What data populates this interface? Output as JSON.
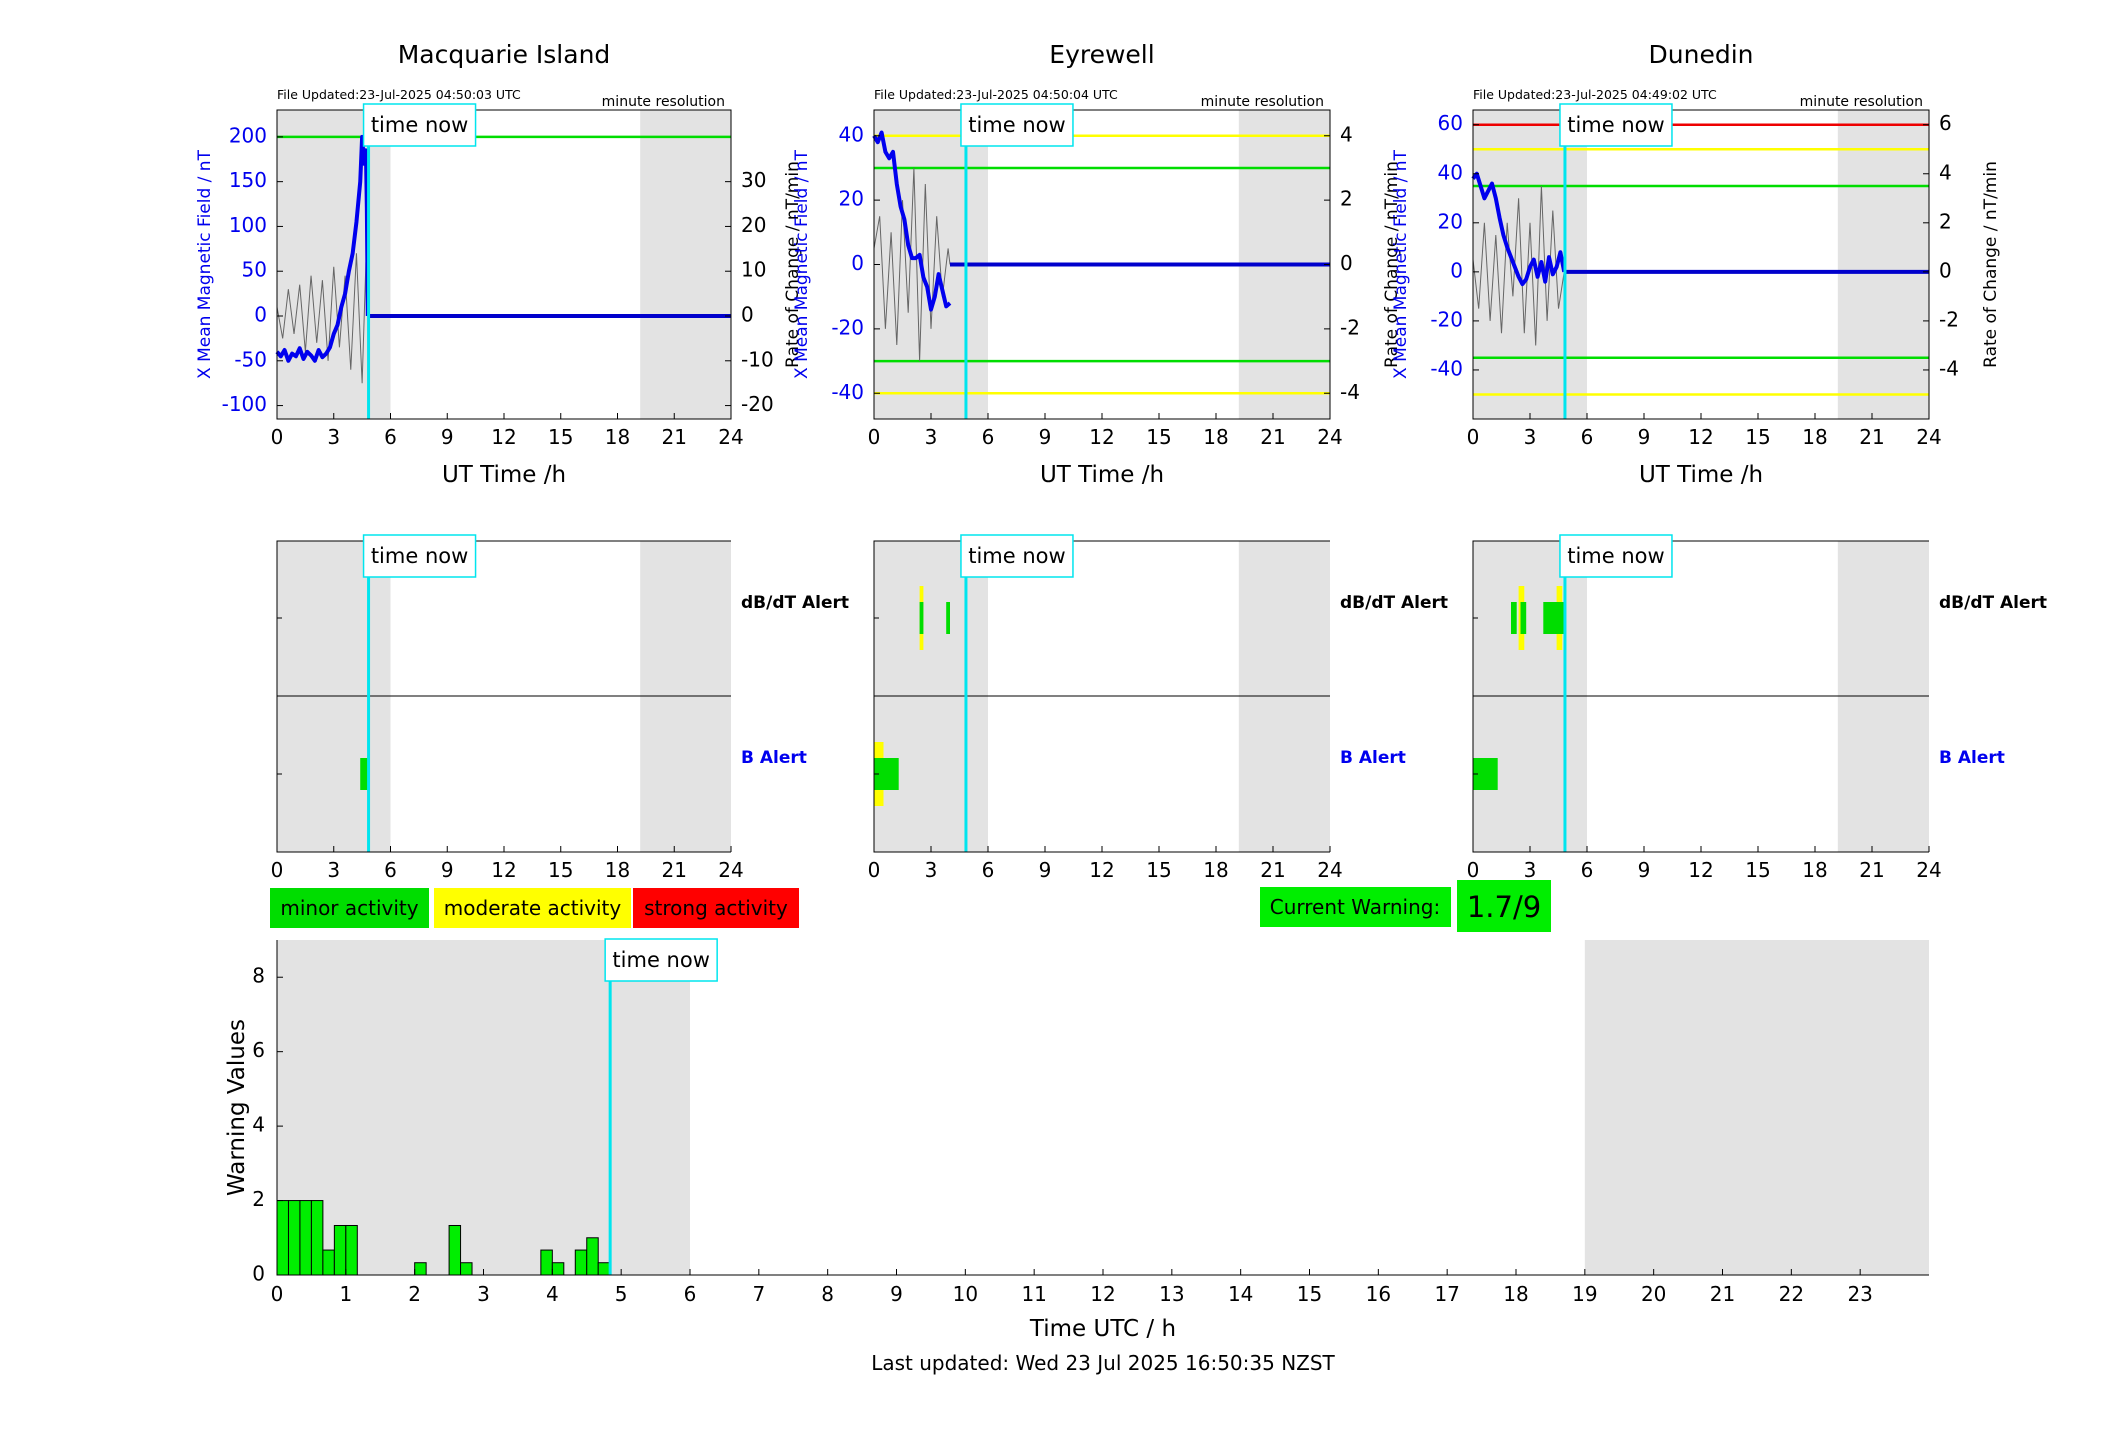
{
  "stations": [
    {
      "name": "Macquarie Island",
      "file_updated": "File Updated:23-Jul-2025 04:50:03 UTC",
      "resolution": "minute resolution",
      "ylabel_left": "X Mean Magnetic Field / nT",
      "ylabel_right": "Rate of Change / nT/min",
      "xlabel": "UT Time /h",
      "ylim_left": [
        -115,
        230
      ],
      "ylim_right": [
        -23,
        46
      ],
      "yticks_left": [
        "-100",
        "-50",
        "0",
        "50",
        "100",
        "150",
        "200"
      ],
      "yticks_left_values": [
        -100,
        -50,
        0,
        50,
        100,
        150,
        200
      ],
      "yticks_right": [
        "-20",
        "-10",
        "0",
        "10",
        "20",
        "30"
      ],
      "yticks_right_values": [
        -20,
        -10,
        0,
        10,
        20,
        30
      ],
      "threshold_lines": [
        {
          "value": 200,
          "color": "#00dd00"
        }
      ],
      "field_x": [
        0,
        0.2,
        0.4,
        0.6,
        0.8,
        1.0,
        1.2,
        1.4,
        1.6,
        1.8,
        2.0,
        2.2,
        2.4,
        2.6,
        2.8,
        3.0,
        3.2,
        3.4,
        3.6,
        3.8,
        4.0,
        4.2,
        4.4,
        4.5,
        4.6,
        4.7,
        4.75,
        4.8
      ],
      "field_y": [
        -40,
        -45,
        -38,
        -50,
        -42,
        -45,
        -36,
        -48,
        -40,
        -44,
        -50,
        -38,
        -46,
        -42,
        -35,
        -20,
        -10,
        10,
        25,
        50,
        70,
        105,
        150,
        200,
        170,
        185,
        120,
        0
      ],
      "roc_x": [
        0,
        0.3,
        0.6,
        0.9,
        1.2,
        1.5,
        1.8,
        2.1,
        2.4,
        2.7,
        3.0,
        3.3,
        3.6,
        3.9,
        4.2,
        4.5,
        4.7,
        4.8
      ],
      "roc_y": [
        2,
        -5,
        6,
        -4,
        7,
        -8,
        9,
        -6,
        8,
        -10,
        11,
        -7,
        9,
        -12,
        14,
        -15,
        12,
        0
      ],
      "now_label": "time now",
      "alerts": {
        "dbdt": [],
        "b": [
          [
            4.4,
            4.8,
            "#00dd00"
          ]
        ]
      }
    },
    {
      "name": "Eyrewell",
      "file_updated": "File Updated:23-Jul-2025 04:50:04 UTC",
      "resolution": "minute resolution",
      "ylabel_left": "X Mean Magnetic Field / nT",
      "ylabel_right": "Rate of Change / nT/min",
      "xlabel": "UT Time /h",
      "ylim_left": [
        -48,
        48
      ],
      "ylim_right": [
        -4.8,
        4.8
      ],
      "yticks_left": [
        "-40",
        "-20",
        "0",
        "20",
        "40"
      ],
      "yticks_left_values": [
        -40,
        -20,
        0,
        20,
        40
      ],
      "yticks_right": [
        "-4",
        "-2",
        "0",
        "2",
        "4"
      ],
      "yticks_right_values": [
        -4,
        -2,
        0,
        2,
        4
      ],
      "threshold_lines": [
        {
          "value": 40,
          "color": "#ffff00"
        },
        {
          "value": 30,
          "color": "#00dd00"
        },
        {
          "value": -30,
          "color": "#00dd00"
        },
        {
          "value": -40,
          "color": "#ffff00"
        }
      ],
      "field_x": [
        0,
        0.2,
        0.4,
        0.6,
        0.8,
        1.0,
        1.2,
        1.4,
        1.6,
        1.8,
        2.0,
        2.2,
        2.4,
        2.6,
        2.8,
        3.0,
        3.2,
        3.4,
        3.6,
        3.8,
        4.0
      ],
      "field_y": [
        40,
        38,
        41,
        35,
        33,
        35,
        25,
        18,
        14,
        6,
        2,
        2,
        3,
        -4,
        -7,
        -14,
        -10,
        -3,
        -8,
        -13,
        -12
      ],
      "roc_x": [
        0,
        0.3,
        0.6,
        0.9,
        1.2,
        1.5,
        1.8,
        2.1,
        2.4,
        2.7,
        3.0,
        3.3,
        3.6,
        3.9,
        4.0
      ],
      "roc_y": [
        0.5,
        1.5,
        -2,
        1,
        -2.5,
        2,
        -1.5,
        3,
        -3,
        2.5,
        -2,
        1.5,
        -1,
        0.5,
        0
      ],
      "now_label": "time now",
      "alerts": {
        "dbdt": [
          [
            2.4,
            2.6,
            "#ffff00"
          ],
          [
            2.4,
            2.6,
            "#00dd00"
          ],
          [
            3.8,
            4.0,
            "#00dd00"
          ]
        ],
        "b": [
          [
            0,
            0.5,
            "#ffff00"
          ],
          [
            0.5,
            1.3,
            "#00dd00"
          ],
          [
            0,
            0.5,
            "#00dd00"
          ]
        ]
      }
    },
    {
      "name": "Dunedin",
      "file_updated": "File Updated:23-Jul-2025 04:49:02 UTC",
      "resolution": "minute resolution",
      "ylabel_left": "X Mean Magnetic Field / nT",
      "ylabel_right": "Rate of Change / nT/min",
      "xlabel": "UT Time /h",
      "ylim_left": [
        -60,
        66
      ],
      "ylim_right": [
        -6,
        6.6
      ],
      "yticks_left": [
        "-40",
        "-20",
        "0",
        "20",
        "40",
        "60"
      ],
      "yticks_left_values": [
        -40,
        -20,
        0,
        20,
        40,
        60
      ],
      "yticks_right": [
        "-4",
        "-2",
        "0",
        "2",
        "4",
        "6"
      ],
      "yticks_right_values": [
        -4,
        -2,
        0,
        2,
        4,
        6
      ],
      "threshold_lines": [
        {
          "value": 60,
          "color": "#ee0000"
        },
        {
          "value": 50,
          "color": "#ffff00"
        },
        {
          "value": 35,
          "color": "#00dd00"
        },
        {
          "value": -35,
          "color": "#00dd00"
        },
        {
          "value": -50,
          "color": "#ffff00"
        }
      ],
      "field_x": [
        0,
        0.2,
        0.4,
        0.6,
        0.8,
        1.0,
        1.2,
        1.4,
        1.6,
        1.8,
        2.0,
        2.2,
        2.4,
        2.6,
        2.8,
        3.0,
        3.2,
        3.4,
        3.6,
        3.8,
        4.0,
        4.2,
        4.4,
        4.6,
        4.8
      ],
      "field_y": [
        38,
        40,
        35,
        30,
        33,
        36,
        30,
        22,
        15,
        10,
        6,
        2,
        -2,
        -5,
        -3,
        2,
        5,
        -2,
        4,
        -4,
        6,
        -1,
        2,
        8,
        0
      ],
      "roc_x": [
        0,
        0.3,
        0.6,
        0.9,
        1.2,
        1.5,
        1.8,
        2.1,
        2.4,
        2.7,
        3.0,
        3.3,
        3.6,
        3.9,
        4.2,
        4.5,
        4.8
      ],
      "roc_y": [
        0.5,
        -1.5,
        2,
        -2,
        1.5,
        -2.5,
        2,
        -1,
        3,
        -2.5,
        2,
        -3,
        3.5,
        -2,
        2.5,
        -1.5,
        0
      ],
      "now_label": "time now",
      "alerts": {
        "dbdt": [
          [
            2.4,
            2.7,
            "#ffff00"
          ],
          [
            4.4,
            4.7,
            "#ffff00"
          ],
          [
            2.0,
            2.3,
            "#00dd00"
          ],
          [
            2.5,
            2.8,
            "#00dd00"
          ],
          [
            3.7,
            4.9,
            "#00dd00"
          ]
        ],
        "b": [
          [
            0,
            1.3,
            "#00dd00"
          ]
        ]
      }
    }
  ],
  "alert_labels": {
    "dbdt": "dB/dT Alert",
    "b": "B Alert"
  },
  "alert_label_colors": {
    "dbdt": "#000000",
    "b": "#0000ee"
  },
  "top_xticks": [
    "0",
    "3",
    "6",
    "9",
    "12",
    "15",
    "18",
    "21",
    "24"
  ],
  "top_xtick_values": [
    0,
    3,
    6,
    9,
    12,
    15,
    18,
    21,
    24
  ],
  "night_bands": [
    [
      0,
      6
    ],
    [
      19.2,
      24
    ]
  ],
  "now_hour": 4.84,
  "legend": [
    {
      "label": "minor activity",
      "color": "#00dd00"
    },
    {
      "label": "moderate activity",
      "color": "#ffff00"
    },
    {
      "label": "strong activity",
      "color": "#ff0000"
    }
  ],
  "current_warning": {
    "label": "Current Warning:",
    "value": "1.7/9",
    "color": "#00ee00"
  },
  "chart_data": {
    "type": "bar",
    "title": "",
    "xlabel": "Time UTC / h",
    "ylabel": "Warning Values",
    "xlim": [
      0,
      24
    ],
    "ylim": [
      0,
      9
    ],
    "xticks": [
      "0",
      "1",
      "2",
      "3",
      "4",
      "5",
      "6",
      "7",
      "8",
      "9",
      "10",
      "11",
      "12",
      "13",
      "14",
      "15",
      "16",
      "17",
      "18",
      "19",
      "20",
      "21",
      "22",
      "23"
    ],
    "yticks": [
      "0",
      "2",
      "4",
      "6",
      "8"
    ],
    "bar_width_h": 0.1667,
    "bar_color": "#00ee00",
    "night_bands": [
      [
        0,
        6
      ],
      [
        19,
        24
      ]
    ],
    "now_hour": 4.84,
    "now_label": "time now",
    "bars": [
      {
        "x": 0.0,
        "value": 2.0
      },
      {
        "x": 0.1667,
        "value": 2.0
      },
      {
        "x": 0.3333,
        "value": 2.0
      },
      {
        "x": 0.5,
        "value": 2.0
      },
      {
        "x": 0.6667,
        "value": 0.67
      },
      {
        "x": 0.8333,
        "value": 1.33
      },
      {
        "x": 1.0,
        "value": 1.33
      },
      {
        "x": 2.0,
        "value": 0.33
      },
      {
        "x": 2.5,
        "value": 1.33
      },
      {
        "x": 2.6667,
        "value": 0.33
      },
      {
        "x": 3.8333,
        "value": 0.67
      },
      {
        "x": 4.0,
        "value": 0.33
      },
      {
        "x": 4.3333,
        "value": 0.67
      },
      {
        "x": 4.5,
        "value": 1.0
      },
      {
        "x": 4.6667,
        "value": 0.33
      }
    ]
  },
  "footer": "Last updated: Wed 23 Jul 2025 16:50:35 NZST"
}
